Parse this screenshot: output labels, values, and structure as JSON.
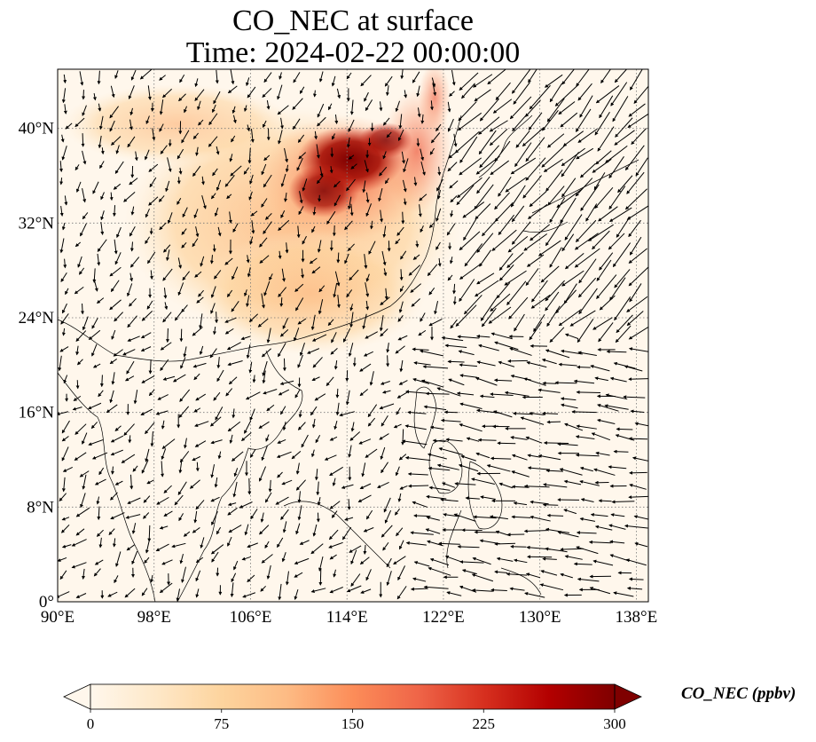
{
  "title": {
    "line1": "CO_NEC at surface",
    "line2": "Time: 2024-02-22 00:00:00"
  },
  "map": {
    "projection": "PlateCarree",
    "extent": {
      "lon": [
        90,
        139
      ],
      "lat": [
        0,
        45
      ]
    },
    "gridlines": "dotted",
    "lon_ticks": [
      {
        "value": 90,
        "label": "90°E"
      },
      {
        "value": 98,
        "label": "98°E"
      },
      {
        "value": 106,
        "label": "106°E"
      },
      {
        "value": 114,
        "label": "114°E"
      },
      {
        "value": 122,
        "label": "122°E"
      },
      {
        "value": 130,
        "label": "130°E"
      },
      {
        "value": 138,
        "label": "138°E"
      }
    ],
    "lat_ticks": [
      {
        "value": 0,
        "label": "0°"
      },
      {
        "value": 8,
        "label": "8°N"
      },
      {
        "value": 16,
        "label": "16°N"
      },
      {
        "value": 24,
        "label": "24°N"
      },
      {
        "value": 32,
        "label": "32°N"
      },
      {
        "value": 40,
        "label": "40°N"
      }
    ],
    "field": "CO_NEC",
    "overlay": "surface wind vectors (quiver)"
  },
  "colorbar": {
    "colormap": "OrRd",
    "min": 0,
    "max": 300,
    "extend": "both",
    "ticks": [
      {
        "value": 0,
        "label": "0"
      },
      {
        "value": 75,
        "label": "75"
      },
      {
        "value": 150,
        "label": "150"
      },
      {
        "value": 225,
        "label": "225"
      },
      {
        "value": 300,
        "label": "300"
      }
    ],
    "label": "CO_NEC (ppbv)",
    "colors": [
      "#fff7ec",
      "#fee8c8",
      "#fdd49e",
      "#fdbb84",
      "#fc8d59",
      "#ef6548",
      "#d7301f",
      "#b30000",
      "#7f0000"
    ]
  }
}
